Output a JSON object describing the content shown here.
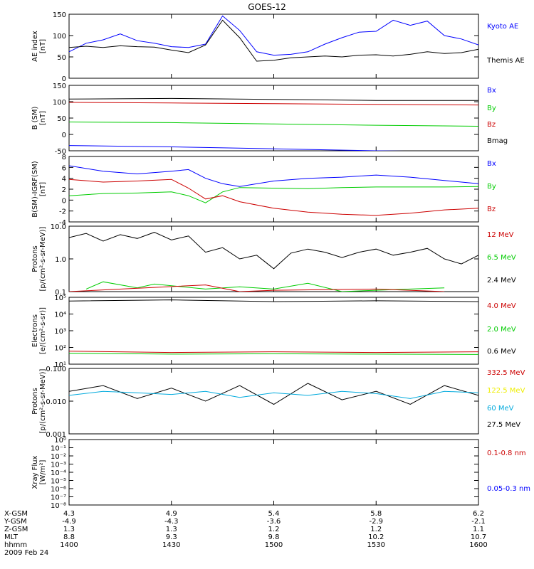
{
  "title": "GOES-12",
  "colors": {
    "black": "#000000",
    "blue": "#0000ff",
    "green": "#00cc00",
    "red": "#cc0000",
    "cyan": "#00aadd",
    "yellow": "#eeee00"
  },
  "x_ticks": [
    1400,
    1430,
    1500,
    1530,
    1600
  ],
  "time_axis": {
    "rows": [
      {
        "label": "X-GSM",
        "values": [
          "4.3",
          "4.9",
          "5.4",
          "5.8",
          "6.2"
        ]
      },
      {
        "label": "Y-GSM",
        "values": [
          "-4.9",
          "-4.3",
          "-3.6",
          "-2.9",
          "-2.1"
        ]
      },
      {
        "label": "Z-GSM",
        "values": [
          "1.3",
          "1.3",
          "1.2",
          "1.2",
          "1.1"
        ]
      },
      {
        "label": "MLT",
        "values": [
          "8.8",
          "9.3",
          "9.8",
          "10.2",
          "10.7"
        ]
      },
      {
        "label": "hhmm",
        "values": [
          "1400",
          "1430",
          "1500",
          "1530",
          "1600"
        ]
      }
    ],
    "date": "2009 Feb 24"
  },
  "panels": [
    {
      "ylabel": [
        "AE index",
        "[nT]"
      ],
      "ticks": [
        "0",
        "50",
        "100",
        "150"
      ],
      "legend": [
        {
          "text": "Kyoto AE",
          "color": "blue"
        },
        {
          "text": "Themis AE",
          "color": "black"
        }
      ]
    },
    {
      "ylabel": [
        "B (SM)",
        "[nT]"
      ],
      "ticks": [
        "-50",
        "0",
        "50",
        "100",
        "150"
      ],
      "legend": [
        {
          "text": "Bx",
          "color": "blue"
        },
        {
          "text": "By",
          "color": "green"
        },
        {
          "text": "Bz",
          "color": "red"
        },
        {
          "text": "Bmag",
          "color": "black"
        }
      ]
    },
    {
      "ylabel": [
        "B(SM)-IGRF(SM)",
        "[nT]"
      ],
      "ticks": [
        "-4",
        "-2",
        "0",
        "2",
        "4",
        "6",
        "8"
      ],
      "legend": [
        {
          "text": "Bx",
          "color": "blue"
        },
        {
          "text": "By",
          "color": "green"
        },
        {
          "text": "Bz",
          "color": "red"
        }
      ]
    },
    {
      "ylabel": [
        "Protons",
        "[p/(cm²-s-sr-MeV)]"
      ],
      "ticks": [
        "0.1",
        "1.0",
        "10.0"
      ],
      "legend": [
        {
          "text": "12 MeV",
          "color": "red"
        },
        {
          "text": "6.5 MeV",
          "color": "green"
        },
        {
          "text": "2.4 MeV",
          "color": "black"
        }
      ]
    },
    {
      "ylabel": [
        "Electrons",
        "[e/(cm²-s-sr)]"
      ],
      "ticks": [
        "10¹",
        "10²",
        "10³",
        "10⁴",
        "10⁵"
      ],
      "legend": [
        {
          "text": "4.0 MeV",
          "color": "red"
        },
        {
          "text": "2.0 MeV",
          "color": "green"
        },
        {
          "text": "0.6 MeV",
          "color": "black"
        }
      ]
    },
    {
      "ylabel": [
        "Protons",
        "[p/(cm²-s-sr-MeV)]"
      ],
      "ticks": [
        "0.001",
        "0.010",
        "0.100"
      ],
      "legend": [
        {
          "text": "332.5 MeV",
          "color": "red"
        },
        {
          "text": "122.5 MeV",
          "color": "yellow"
        },
        {
          "text": "60 MeV",
          "color": "cyan"
        },
        {
          "text": "27.5 MeV",
          "color": "black"
        }
      ]
    },
    {
      "ylabel": [
        "Xray Flux",
        "[W/m²]"
      ],
      "ticks": [
        "10⁻⁸",
        "10⁻⁷",
        "10⁻⁶",
        "10⁻⁵",
        "10⁻⁴",
        "10⁻³",
        "10⁻²",
        "10⁻¹",
        "10⁰"
      ],
      "legend": [
        {
          "text": "0.1-0.8 nm",
          "color": "red"
        },
        {
          "text": "0.05-0.3 nm",
          "color": "blue"
        }
      ]
    }
  ],
  "chart_data": [
    {
      "type": "line",
      "xlabel": "",
      "ylabel": "AE index [nT]",
      "ylim": [
        0,
        150
      ],
      "series": [
        {
          "name": "Kyoto AE",
          "color": "blue",
          "x": [
            1400,
            1405,
            1410,
            1415,
            1420,
            1425,
            1430,
            1435,
            1440,
            1445,
            1450,
            1455,
            1500,
            1505,
            1510,
            1515,
            1520,
            1525,
            1530,
            1535,
            1540,
            1545,
            1550,
            1555,
            1600
          ],
          "values": [
            62,
            82,
            90,
            104,
            88,
            82,
            74,
            72,
            80,
            146,
            112,
            62,
            54,
            56,
            62,
            80,
            95,
            108,
            110,
            136,
            124,
            134,
            100,
            92,
            78
          ]
        },
        {
          "name": "Themis AE",
          "color": "black",
          "x": [
            1400,
            1405,
            1410,
            1415,
            1420,
            1425,
            1430,
            1435,
            1440,
            1445,
            1450,
            1455,
            1500,
            1505,
            1510,
            1515,
            1520,
            1525,
            1530,
            1535,
            1540,
            1545,
            1550,
            1555,
            1600
          ],
          "values": [
            72,
            75,
            72,
            76,
            74,
            73,
            66,
            60,
            78,
            136,
            95,
            40,
            42,
            48,
            50,
            52,
            50,
            54,
            55,
            52,
            56,
            62,
            58,
            60,
            68
          ]
        }
      ]
    },
    {
      "type": "line",
      "xlabel": "",
      "ylabel": "B (SM) [nT]",
      "ylim": [
        -50,
        150
      ],
      "series": [
        {
          "name": "Bmag",
          "color": "black",
          "x": [
            1400,
            1430,
            1500,
            1530,
            1600
          ],
          "values": [
            108,
            110,
            107,
            104,
            104
          ]
        },
        {
          "name": "Bz",
          "color": "red",
          "x": [
            1400,
            1430,
            1500,
            1530,
            1600
          ],
          "values": [
            98,
            96,
            94,
            92,
            90
          ]
        },
        {
          "name": "By",
          "color": "green",
          "x": [
            1400,
            1430,
            1500,
            1530,
            1600
          ],
          "values": [
            38,
            36,
            32,
            28,
            25
          ]
        },
        {
          "name": "Bx",
          "color": "blue",
          "x": [
            1400,
            1430,
            1500,
            1530,
            1600
          ],
          "values": [
            -34,
            -38,
            -44,
            -50,
            -54
          ]
        }
      ]
    },
    {
      "type": "line",
      "xlabel": "",
      "ylabel": "B(SM)-IGRF(SM) [nT]",
      "ylim": [
        -4,
        8
      ],
      "series": [
        {
          "name": "Bx",
          "color": "blue",
          "x": [
            1400,
            1410,
            1420,
            1430,
            1435,
            1440,
            1445,
            1450,
            1500,
            1510,
            1520,
            1530,
            1540,
            1550,
            1600
          ],
          "values": [
            6.3,
            5.3,
            4.8,
            5.3,
            5.6,
            4.0,
            3.0,
            2.5,
            3.5,
            4.0,
            4.2,
            4.6,
            4.2,
            3.6,
            3.0
          ]
        },
        {
          "name": "By",
          "color": "green",
          "x": [
            1400,
            1410,
            1420,
            1430,
            1435,
            1440,
            1445,
            1450,
            1500,
            1510,
            1520,
            1530,
            1540,
            1550,
            1600
          ],
          "values": [
            0.8,
            1.2,
            1.3,
            1.5,
            0.8,
            -0.5,
            1.5,
            2.3,
            2.2,
            2.1,
            2.3,
            2.4,
            2.4,
            2.4,
            2.5
          ]
        },
        {
          "name": "Bz",
          "color": "red",
          "x": [
            1400,
            1410,
            1420,
            1430,
            1435,
            1440,
            1445,
            1450,
            1500,
            1510,
            1520,
            1530,
            1540,
            1550,
            1600
          ],
          "values": [
            3.8,
            3.3,
            3.5,
            3.8,
            2.2,
            0.2,
            0.8,
            -0.3,
            -1.5,
            -2.2,
            -2.6,
            -2.8,
            -2.4,
            -1.8,
            -1.5
          ]
        }
      ]
    },
    {
      "type": "line",
      "xlabel": "",
      "ylabel": "Protons [p/(cm²-s-sr-MeV)]",
      "ylim": [
        0.1,
        10
      ],
      "yscale": "log",
      "series": [
        {
          "name": "2.4 MeV",
          "color": "black",
          "x": [
            1400,
            1405,
            1410,
            1415,
            1420,
            1425,
            1430,
            1435,
            1440,
            1445,
            1450,
            1455,
            1500,
            1505,
            1510,
            1515,
            1520,
            1525,
            1530,
            1535,
            1540,
            1545,
            1550,
            1555,
            1600
          ],
          "values": [
            4.5,
            6.0,
            3.5,
            5.5,
            4.2,
            6.5,
            3.8,
            5.0,
            1.6,
            2.2,
            1.0,
            1.3,
            0.5,
            1.5,
            2.0,
            1.6,
            1.1,
            1.6,
            2.0,
            1.3,
            1.6,
            2.1,
            1.0,
            0.7,
            1.3
          ]
        },
        {
          "name": "6.5 MeV",
          "color": "green",
          "x": [
            1405,
            1410,
            1420,
            1425,
            1440,
            1450,
            1500,
            1510,
            1520,
            1530,
            1540,
            1550
          ],
          "values": [
            0.12,
            0.2,
            0.13,
            0.17,
            0.12,
            0.14,
            0.12,
            0.18,
            0.1,
            0.11,
            0.12,
            0.13
          ]
        },
        {
          "name": "12 MeV",
          "color": "red",
          "x": [
            1400,
            1440,
            1450,
            1500,
            1530,
            1550
          ],
          "values": [
            0.1,
            0.16,
            0.1,
            0.11,
            0.12,
            0.1
          ]
        }
      ]
    },
    {
      "type": "line",
      "xlabel": "",
      "ylabel": "Electrons [e/(cm²-s-sr)]",
      "ylim": [
        10,
        100000
      ],
      "yscale": "log",
      "series": [
        {
          "name": "0.6 MeV",
          "color": "black",
          "x": [
            1400,
            1430,
            1500,
            1530,
            1600
          ],
          "values": [
            60000,
            70000,
            55000,
            62000,
            55000
          ]
        },
        {
          "name": "4.0 MeV",
          "color": "red",
          "x": [
            1400,
            1430,
            1500,
            1530,
            1600
          ],
          "values": [
            60,
            50,
            55,
            50,
            55
          ]
        },
        {
          "name": "2.0 MeV",
          "color": "green",
          "x": [
            1400,
            1430,
            1500,
            1530,
            1600
          ],
          "values": [
            45,
            40,
            42,
            40,
            38
          ]
        }
      ]
    },
    {
      "type": "line",
      "xlabel": "",
      "ylabel": "Protons [p/(cm²-s-sr-MeV)]",
      "ylim": [
        0.001,
        0.1
      ],
      "yscale": "log",
      "series": [
        {
          "name": "27.5 MeV",
          "color": "black",
          "x": [
            1400,
            1410,
            1420,
            1430,
            1440,
            1450,
            1500,
            1510,
            1520,
            1530,
            1540,
            1550,
            1600
          ],
          "values": [
            0.02,
            0.03,
            0.012,
            0.025,
            0.01,
            0.03,
            0.008,
            0.035,
            0.011,
            0.02,
            0.008,
            0.03,
            0.015
          ]
        },
        {
          "name": "60 MeV",
          "color": "cyan",
          "x": [
            1400,
            1410,
            1420,
            1430,
            1440,
            1450,
            1500,
            1510,
            1520,
            1530,
            1540,
            1550,
            1600
          ],
          "values": [
            0.015,
            0.02,
            0.018,
            0.016,
            0.02,
            0.013,
            0.018,
            0.015,
            0.02,
            0.017,
            0.012,
            0.02,
            0.018
          ]
        }
      ]
    },
    {
      "type": "line",
      "xlabel": "",
      "ylabel": "Xray Flux [W/m²]",
      "ylim": [
        1e-08,
        1
      ],
      "yscale": "log",
      "series": [
        {
          "name": "0.1-0.8 nm",
          "color": "red",
          "x": [],
          "values": []
        },
        {
          "name": "0.05-0.3 nm",
          "color": "blue",
          "x": [],
          "values": []
        }
      ]
    }
  ]
}
